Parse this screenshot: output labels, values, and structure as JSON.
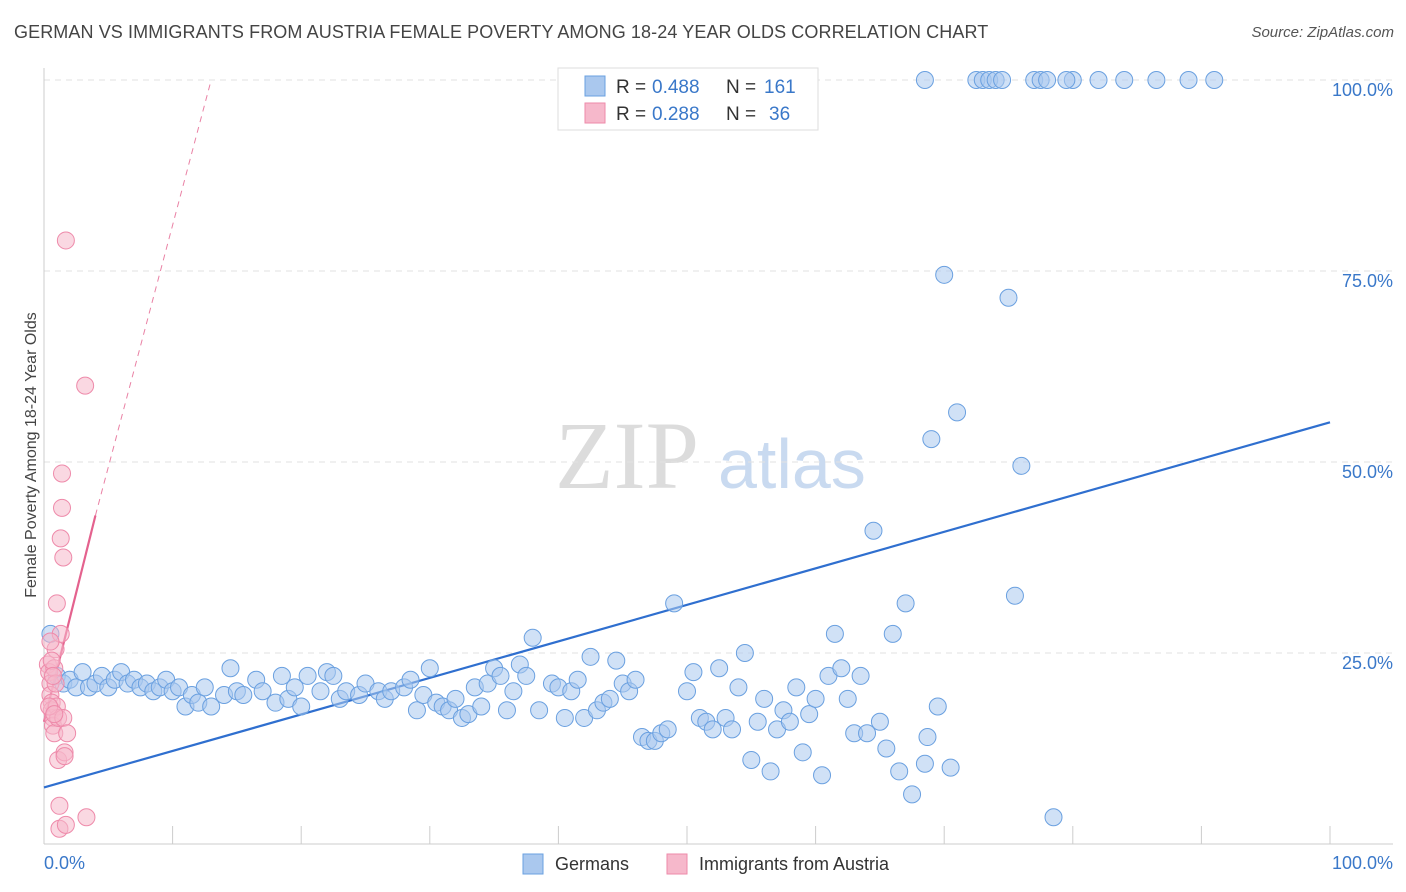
{
  "title": "GERMAN VS IMMIGRANTS FROM AUSTRIA FEMALE POVERTY AMONG 18-24 YEAR OLDS CORRELATION CHART",
  "source": "Source: ZipAtlas.com",
  "watermark": {
    "zip": "ZIP",
    "atlas": "atlas"
  },
  "stats_legend": [
    {
      "r_label": "R =",
      "r_value": "0.488",
      "n_label": "N =",
      "n_value": "161",
      "swatch": "#aac8ee"
    },
    {
      "r_label": "R =",
      "r_value": "0.288",
      "n_label": "N =",
      "n_value": "36",
      "swatch": "#f6b8cb"
    }
  ],
  "chart_data": {
    "type": "scatter",
    "title": "GERMAN VS IMMIGRANTS FROM AUSTRIA FEMALE POVERTY AMONG 18-24 YEAR OLDS CORRELATION CHART",
    "xlabel": "",
    "ylabel": "Female Poverty Among 18-24 Year Olds",
    "xlim": [
      0,
      100
    ],
    "ylim": [
      0,
      100
    ],
    "x_tick_labels": [
      "0.0%",
      "100.0%"
    ],
    "y_tick_labels": [
      {
        "value": 25,
        "label": "25.0%"
      },
      {
        "value": 50,
        "label": "50.0%"
      },
      {
        "value": 75,
        "label": "75.0%"
      },
      {
        "value": 100,
        "label": "100.0%"
      }
    ],
    "grid": true,
    "legend": [
      "Germans",
      "Immigrants from Austria"
    ],
    "series": [
      {
        "name": "Germans",
        "color": "#6aa0e0",
        "fill": "#aac8ee",
        "trend": {
          "x": [
            0,
            100
          ],
          "y": [
            7.4,
            55.2
          ],
          "color": "#2f6fcf",
          "dashed_extension": false
        },
        "points": [
          [
            0.5,
            27.5
          ],
          [
            1.0,
            22.0
          ],
          [
            1.5,
            21.0
          ],
          [
            2.0,
            21.5
          ],
          [
            2.5,
            20.5
          ],
          [
            3.0,
            22.5
          ],
          [
            3.5,
            20.5
          ],
          [
            4.0,
            21.0
          ],
          [
            4.5,
            22.0
          ],
          [
            5.0,
            20.5
          ],
          [
            5.5,
            21.5
          ],
          [
            6.0,
            22.5
          ],
          [
            6.5,
            21.0
          ],
          [
            7.0,
            21.5
          ],
          [
            7.5,
            20.5
          ],
          [
            8.0,
            21.0
          ],
          [
            8.5,
            20.0
          ],
          [
            9.0,
            20.5
          ],
          [
            9.5,
            21.5
          ],
          [
            10.0,
            20.0
          ],
          [
            10.5,
            20.5
          ],
          [
            11.0,
            18.0
          ],
          [
            11.5,
            19.5
          ],
          [
            12.0,
            18.5
          ],
          [
            12.5,
            20.5
          ],
          [
            13.0,
            18.0
          ],
          [
            14.0,
            19.5
          ],
          [
            14.5,
            23.0
          ],
          [
            15.0,
            20.0
          ],
          [
            15.5,
            19.5
          ],
          [
            16.5,
            21.5
          ],
          [
            17.0,
            20.0
          ],
          [
            18.0,
            18.5
          ],
          [
            18.5,
            22.0
          ],
          [
            19.0,
            19.0
          ],
          [
            19.5,
            20.5
          ],
          [
            20.0,
            18.0
          ],
          [
            20.5,
            22.0
          ],
          [
            21.5,
            20.0
          ],
          [
            22.0,
            22.5
          ],
          [
            22.5,
            22.0
          ],
          [
            23.0,
            19.0
          ],
          [
            23.5,
            20.0
          ],
          [
            24.5,
            19.5
          ],
          [
            25.0,
            21.0
          ],
          [
            26.0,
            20.0
          ],
          [
            26.5,
            19.0
          ],
          [
            27.0,
            20.0
          ],
          [
            28.0,
            20.5
          ],
          [
            28.5,
            21.5
          ],
          [
            29.0,
            17.5
          ],
          [
            29.5,
            19.5
          ],
          [
            30.0,
            23.0
          ],
          [
            30.5,
            18.5
          ],
          [
            31.0,
            18.0
          ],
          [
            31.5,
            17.5
          ],
          [
            32.0,
            19.0
          ],
          [
            32.5,
            16.5
          ],
          [
            33.0,
            17.0
          ],
          [
            33.5,
            20.5
          ],
          [
            34.0,
            18.0
          ],
          [
            34.5,
            21.0
          ],
          [
            35.0,
            23.0
          ],
          [
            35.5,
            22.0
          ],
          [
            36.0,
            17.5
          ],
          [
            36.5,
            20.0
          ],
          [
            37.0,
            23.5
          ],
          [
            37.5,
            22.0
          ],
          [
            38.0,
            27.0
          ],
          [
            38.5,
            17.5
          ],
          [
            39.5,
            21.0
          ],
          [
            40.0,
            20.5
          ],
          [
            40.5,
            16.5
          ],
          [
            41.0,
            20.0
          ],
          [
            41.5,
            21.5
          ],
          [
            42.0,
            16.5
          ],
          [
            42.5,
            24.5
          ],
          [
            43.0,
            17.5
          ],
          [
            43.5,
            18.5
          ],
          [
            44.0,
            19.0
          ],
          [
            44.5,
            24.0
          ],
          [
            45.0,
            21.0
          ],
          [
            45.5,
            20.0
          ],
          [
            46.0,
            21.5
          ],
          [
            46.5,
            14.0
          ],
          [
            47.0,
            13.5
          ],
          [
            47.5,
            13.5
          ],
          [
            48.0,
            14.5
          ],
          [
            48.5,
            15.0
          ],
          [
            49.0,
            31.5
          ],
          [
            50.0,
            20.0
          ],
          [
            50.5,
            22.5
          ],
          [
            51.0,
            16.5
          ],
          [
            51.5,
            16.0
          ],
          [
            52.0,
            15.0
          ],
          [
            52.5,
            23.0
          ],
          [
            53.0,
            16.5
          ],
          [
            53.5,
            15.0
          ],
          [
            54.0,
            20.5
          ],
          [
            54.5,
            25.0
          ],
          [
            55.0,
            11.0
          ],
          [
            55.5,
            16.0
          ],
          [
            56.0,
            19.0
          ],
          [
            56.5,
            9.5
          ],
          [
            57.0,
            15.0
          ],
          [
            57.5,
            17.5
          ],
          [
            58.0,
            16.0
          ],
          [
            58.5,
            20.5
          ],
          [
            59.0,
            12.0
          ],
          [
            59.5,
            17.0
          ],
          [
            60.0,
            19.0
          ],
          [
            60.5,
            9.0
          ],
          [
            61.0,
            22.0
          ],
          [
            61.5,
            27.5
          ],
          [
            62.0,
            23.0
          ],
          [
            62.5,
            19.0
          ],
          [
            63.0,
            14.5
          ],
          [
            63.5,
            22.0
          ],
          [
            64.0,
            14.5
          ],
          [
            64.5,
            41.0
          ],
          [
            65.0,
            16.0
          ],
          [
            65.5,
            12.5
          ],
          [
            66.0,
            27.5
          ],
          [
            66.5,
            9.5
          ],
          [
            67.0,
            31.5
          ],
          [
            67.5,
            6.5
          ],
          [
            68.5,
            10.5
          ],
          [
            68.7,
            14.0
          ],
          [
            69.0,
            53.0
          ],
          [
            69.5,
            18.0
          ],
          [
            70.0,
            74.5
          ],
          [
            70.5,
            10.0
          ],
          [
            71.0,
            56.5
          ],
          [
            72.5,
            100.0
          ],
          [
            73.0,
            100.0
          ],
          [
            73.5,
            100.0
          ],
          [
            74.0,
            100.0
          ],
          [
            75.0,
            71.5
          ],
          [
            75.5,
            32.5
          ],
          [
            76.0,
            49.5
          ],
          [
            77.0,
            100.0
          ],
          [
            77.5,
            100.0
          ],
          [
            78.0,
            100.0
          ],
          [
            78.5,
            3.5
          ],
          [
            80.0,
            100.0
          ],
          [
            82.0,
            100.0
          ],
          [
            84.0,
            100.0
          ],
          [
            68.5,
            100.0
          ],
          [
            74.5,
            100.0
          ],
          [
            79.5,
            100.0
          ],
          [
            86.5,
            100.0
          ],
          [
            89.0,
            100.0
          ],
          [
            91.0,
            100.0
          ]
        ]
      },
      {
        "name": "Immigrants from Austria",
        "color": "#ee8aaa",
        "fill": "#f6b8cb",
        "trend": {
          "x": [
            0,
            4.0
          ],
          "y": [
            16.0,
            43.0
          ],
          "color": "#e4628e",
          "dashed_extension_to": [
            13.0,
            100.0
          ]
        },
        "points": [
          [
            0.3,
            23.5
          ],
          [
            0.4,
            22.5
          ],
          [
            0.5,
            21.0
          ],
          [
            0.5,
            19.5
          ],
          [
            0.6,
            18.5
          ],
          [
            0.6,
            17.5
          ],
          [
            0.7,
            16.5
          ],
          [
            0.7,
            15.5
          ],
          [
            0.8,
            14.5
          ],
          [
            0.8,
            23.0
          ],
          [
            0.9,
            21.0
          ],
          [
            0.9,
            25.5
          ],
          [
            1.0,
            31.5
          ],
          [
            1.0,
            18.0
          ],
          [
            1.1,
            16.5
          ],
          [
            1.1,
            11.0
          ],
          [
            1.2,
            5.0
          ],
          [
            1.2,
            2.0
          ],
          [
            1.3,
            27.5
          ],
          [
            1.3,
            40.0
          ],
          [
            1.4,
            44.0
          ],
          [
            1.4,
            48.5
          ],
          [
            1.5,
            37.5
          ],
          [
            1.5,
            16.5
          ],
          [
            1.6,
            12.0
          ],
          [
            1.6,
            11.5
          ],
          [
            1.7,
            2.5
          ],
          [
            1.8,
            14.5
          ],
          [
            1.7,
            79.0
          ],
          [
            3.2,
            60.0
          ],
          [
            3.3,
            3.5
          ],
          [
            0.4,
            18.0
          ],
          [
            0.5,
            26.5
          ],
          [
            0.6,
            24.0
          ],
          [
            0.7,
            22.0
          ],
          [
            0.8,
            17.0
          ]
        ]
      }
    ]
  }
}
